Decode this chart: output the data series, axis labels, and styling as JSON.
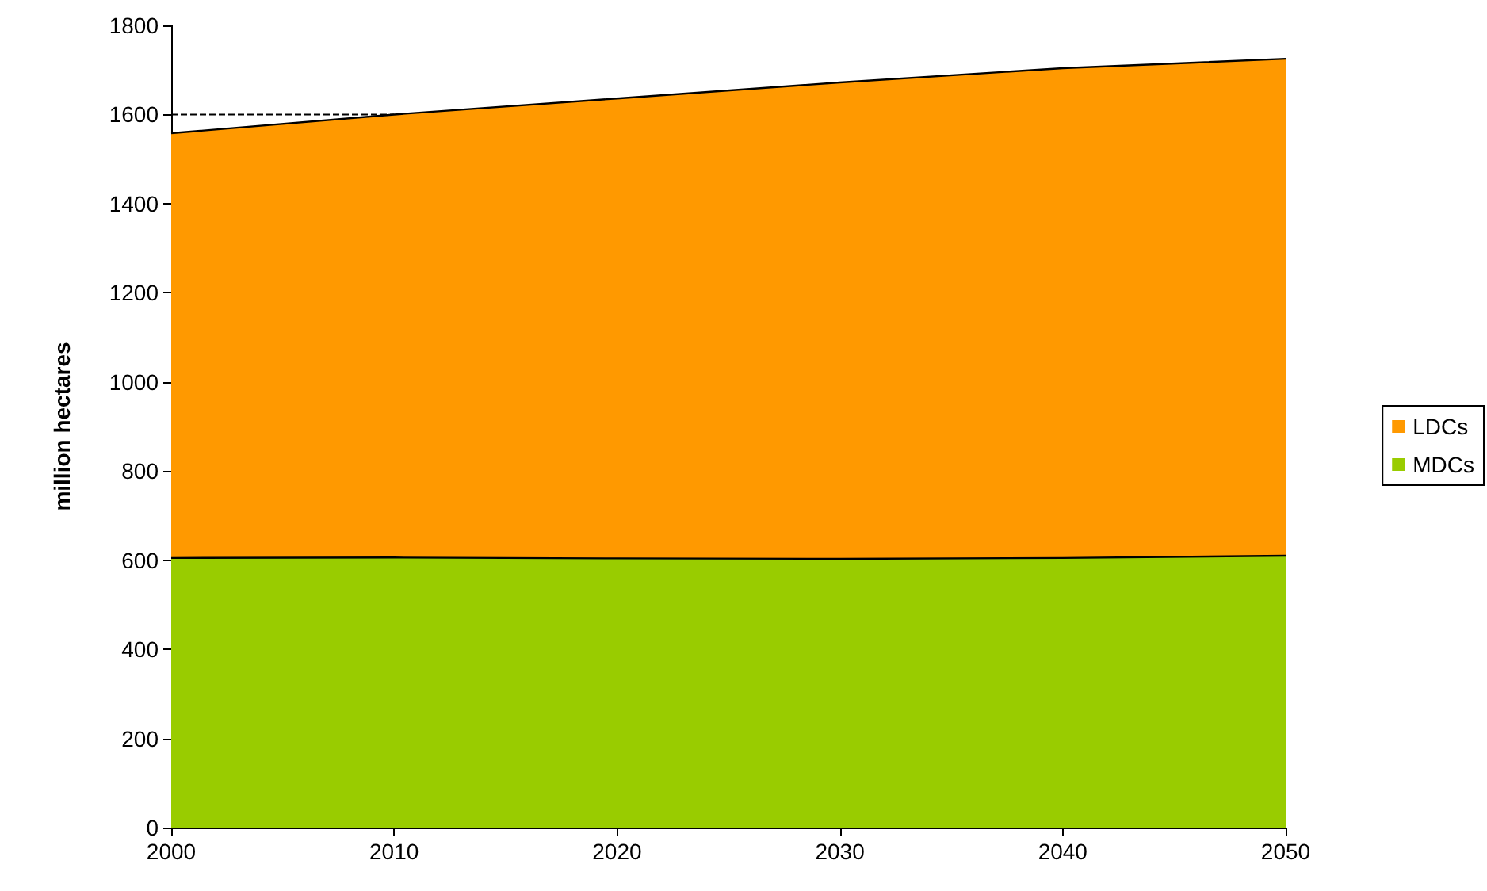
{
  "chart_data": {
    "type": "area",
    "stacked": true,
    "ylabel": "million hectares",
    "categories": [
      "2000",
      "2010",
      "2020",
      "2030",
      "2040",
      "2050"
    ],
    "series": [
      {
        "name": "MDCs",
        "color": "#99cc00",
        "values": [
          605,
          606,
          604,
          603,
          605,
          610
        ]
      },
      {
        "name": "LDCs",
        "color": "#ff9900",
        "values": [
          953,
          994,
          1032,
          1069,
          1099,
          1115
        ]
      }
    ],
    "ylim": [
      0,
      1800
    ],
    "yticks": [
      0,
      200,
      400,
      600,
      800,
      1000,
      1200,
      1400,
      1600,
      1800
    ],
    "ref_lines": [
      {
        "axis": "y",
        "value": 1600,
        "line_style": "dashed",
        "color": "#000000"
      }
    ],
    "grid": false,
    "legend": "right"
  }
}
